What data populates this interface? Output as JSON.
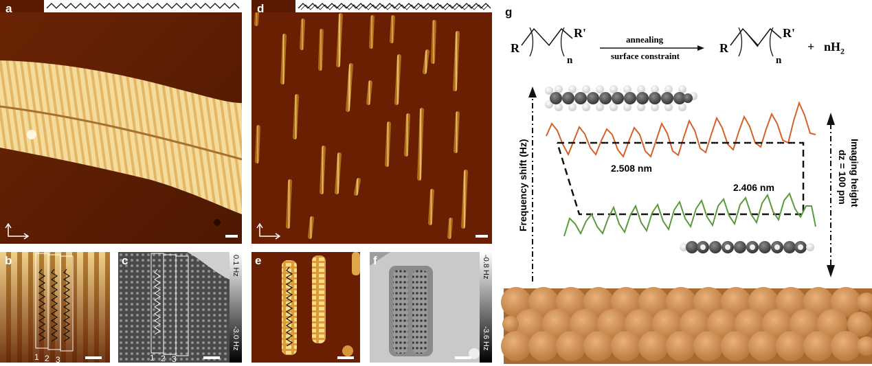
{
  "panels": {
    "a": {
      "label": "a"
    },
    "b": {
      "label": "b",
      "columns": [
        "1",
        "2",
        "3"
      ]
    },
    "c": {
      "label": "c",
      "scale_top": "0.1 Hz",
      "scale_bottom": "-3.0 Hz",
      "columns": [
        "1",
        "2",
        "3"
      ]
    },
    "d": {
      "label": "d"
    },
    "e": {
      "label": "e"
    },
    "f": {
      "label": "f",
      "scale_top": "-0.8 Hz",
      "scale_bottom": "-3.6 Hz"
    },
    "g": {
      "label": "g"
    }
  },
  "reaction": {
    "reactant_R": "R",
    "reactant_Rp": "R'",
    "reactant_n": "n",
    "arrow_top": "annealing",
    "arrow_bottom": "surface constraint",
    "product_R": "R",
    "product_Rp": "R'",
    "product_n": "n",
    "plus": "+",
    "byproduct": "nH",
    "byproduct_sub": "2"
  },
  "profile": {
    "y_axis": "Frequency shift (Hz)",
    "length_top": "2.508 nm",
    "length_bottom": "2.406 nm",
    "height_label": "Imaging height",
    "height_value": "dz = 100 pm"
  },
  "colors": {
    "stm_dark": "#5a1a02",
    "stm_bright": "#f2d890",
    "top_trace": "#d2622a",
    "bottom_trace": "#5a9a3a",
    "copper": "#c98a47"
  }
}
